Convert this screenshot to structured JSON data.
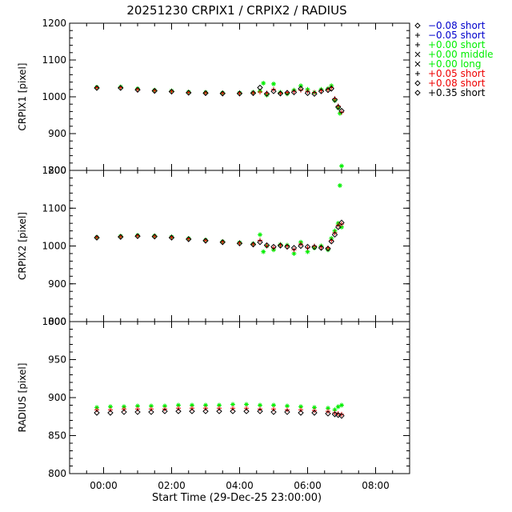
{
  "chart_data": {
    "type": "scatter",
    "title": "20251230 CRPIX1 / CRPIX2 / RADIUS",
    "xlabel": "Start Time (29-Dec-25 23:00:00)",
    "x_ticks": [
      "00:00",
      "02:00",
      "04:00",
      "06:00",
      "08:00"
    ],
    "x_tick_hours": [
      0,
      2,
      4,
      6,
      8
    ],
    "x_range_hours": [
      -1,
      9
    ],
    "legend_placement": "right",
    "legend": [
      {
        "symbol": "diamond",
        "sign": "−",
        "offset": "0.08",
        "length": "short",
        "color": "#0000cc"
      },
      {
        "symbol": "plus",
        "sign": "−",
        "offset": "0.05",
        "length": "short",
        "color": "#0000cc"
      },
      {
        "symbol": "plus",
        "sign": "+",
        "offset": "0.00",
        "length": "short",
        "color": "#00ee00"
      },
      {
        "symbol": "cross",
        "sign": "+",
        "offset": "0.00",
        "length": "middle",
        "color": "#00ee00"
      },
      {
        "symbol": "cross",
        "sign": "+",
        "offset": "0.00",
        "length": "long",
        "color": "#00ee00"
      },
      {
        "symbol": "plus",
        "sign": "+",
        "offset": "0.05",
        "length": "short",
        "color": "#ee0000"
      },
      {
        "symbol": "diamond",
        "sign": "+",
        "offset": "0.08",
        "length": "short",
        "color": "#ee0000"
      },
      {
        "symbol": "diamond",
        "sign": "+",
        "offset": "0.35",
        "length": "short",
        "color": "#000000"
      }
    ],
    "panels": [
      {
        "id": "crpix1",
        "ylabel": "CRPIX1 [pixel]",
        "ylim": [
          800,
          1200
        ],
        "y_ticks": [
          800,
          900,
          1000,
          1100,
          1200
        ],
        "series": [
          {
            "color": "#00ee00",
            "symbol": "asterisk",
            "x": [
              -0.2,
              0.5,
              1.0,
              1.5,
              2.0,
              2.5,
              3.0,
              3.5,
              4.0,
              4.4,
              4.6,
              4.7,
              4.8,
              5.0,
              5.2,
              5.4,
              5.6,
              5.8,
              6.0,
              6.2,
              6.4,
              6.6,
              6.7,
              6.8,
              6.9,
              6.95,
              7.0
            ],
            "y": [
              1026,
              1027,
              1022,
              1018,
              1016,
              1013,
              1012,
              1011,
              1011,
              1012,
              1015,
              1037,
              1005,
              1035,
              1012,
              1008,
              1018,
              1030,
              1020,
              1012,
              1020,
              1022,
              1030,
              990,
              970,
              955,
              812
            ]
          },
          {
            "color": "#ee0000",
            "symbol": "plus",
            "x": [
              -0.2,
              0.5,
              1.0,
              1.5,
              2.0,
              2.5,
              3.0,
              3.5,
              4.0,
              4.4,
              4.6,
              4.8,
              5.0,
              5.2,
              5.4,
              5.6,
              5.8,
              6.0,
              6.2,
              6.4,
              6.6,
              6.7,
              6.8,
              6.9,
              7.0
            ],
            "y": [
              1025,
              1025,
              1020,
              1017,
              1015,
              1012,
              1011,
              1010,
              1010,
              1011,
              1013,
              1010,
              1020,
              1010,
              1012,
              1015,
              1018,
              1015,
              1012,
              1017,
              1020,
              1025,
              995,
              975,
              958
            ]
          },
          {
            "color": "#000000",
            "symbol": "diamond",
            "x": [
              -0.2,
              0.5,
              1.0,
              1.5,
              2.0,
              2.5,
              3.0,
              3.5,
              4.0,
              4.4,
              4.6,
              4.8,
              5.0,
              5.2,
              5.4,
              5.6,
              5.8,
              6.0,
              6.2,
              6.4,
              6.6,
              6.7,
              6.8,
              6.9,
              7.0
            ],
            "y": [
              1024,
              1024,
              1019,
              1016,
              1014,
              1011,
              1010,
              1009,
              1009,
              1010,
              1025,
              1008,
              1015,
              1009,
              1011,
              1012,
              1022,
              1010,
              1008,
              1015,
              1018,
              1022,
              992,
              972,
              962
            ]
          }
        ]
      },
      {
        "id": "crpix2",
        "ylabel": "CRPIX2 [pixel]",
        "ylim": [
          800,
          1200
        ],
        "y_ticks": [
          800,
          900,
          1000,
          1100,
          1200
        ],
        "series": [
          {
            "color": "#00ee00",
            "symbol": "asterisk",
            "x": [
              -0.2,
              0.5,
              1.0,
              1.5,
              2.0,
              2.5,
              3.0,
              3.5,
              4.0,
              4.4,
              4.6,
              4.7,
              4.8,
              5.0,
              5.2,
              5.4,
              5.6,
              5.8,
              6.0,
              6.2,
              6.4,
              6.6,
              6.7,
              6.8,
              6.9,
              6.95,
              7.0
            ],
            "y": [
              1023,
              1026,
              1028,
              1027,
              1024,
              1020,
              1016,
              1012,
              1009,
              1006,
              1030,
              985,
              1000,
              990,
              1004,
              1002,
              980,
              1010,
              985,
              995,
              1000,
              990,
              1020,
              1040,
              1060,
              1160,
              1050
            ]
          },
          {
            "color": "#ee0000",
            "symbol": "plus",
            "x": [
              -0.2,
              0.5,
              1.0,
              1.5,
              2.0,
              2.5,
              3.0,
              3.5,
              4.0,
              4.4,
              4.6,
              4.8,
              5.0,
              5.2,
              5.4,
              5.6,
              5.8,
              6.0,
              6.2,
              6.4,
              6.6,
              6.7,
              6.8,
              6.9,
              7.0
            ],
            "y": [
              1023,
              1025,
              1027,
              1026,
              1023,
              1019,
              1015,
              1011,
              1008,
              1005,
              1015,
              1000,
              995,
              1003,
              1000,
              990,
              1005,
              995,
              1000,
              997,
              995,
              1015,
              1035,
              1055,
              1058
            ]
          },
          {
            "color": "#000000",
            "symbol": "diamond",
            "x": [
              -0.2,
              0.5,
              1.0,
              1.5,
              2.0,
              2.5,
              3.0,
              3.5,
              4.0,
              4.4,
              4.6,
              4.8,
              5.0,
              5.2,
              5.4,
              5.6,
              5.8,
              6.0,
              6.2,
              6.4,
              6.6,
              6.7,
              6.8,
              6.9,
              7.0
            ],
            "y": [
              1022,
              1024,
              1026,
              1025,
              1022,
              1018,
              1014,
              1010,
              1007,
              1004,
              1010,
              1002,
              998,
              1001,
              998,
              995,
              1000,
              998,
              997,
              995,
              993,
              1012,
              1030,
              1050,
              1062
            ]
          }
        ]
      },
      {
        "id": "radius",
        "ylabel": "RADIUS [pixel]",
        "ylim": [
          800,
          1000
        ],
        "y_ticks": [
          800,
          850,
          900,
          950,
          1000
        ],
        "series": [
          {
            "color": "#00ee00",
            "symbol": "asterisk",
            "x": [
              -0.2,
              0.2,
              0.6,
              1.0,
              1.4,
              1.8,
              2.2,
              2.6,
              3.0,
              3.4,
              3.8,
              4.2,
              4.6,
              5.0,
              5.4,
              5.8,
              6.2,
              6.6,
              6.8,
              6.9,
              7.0
            ],
            "y": [
              887,
              888,
              888,
              889,
              889,
              889,
              890,
              890,
              890,
              890,
              891,
              891,
              890,
              890,
              889,
              888,
              887,
              886,
              884,
              888,
              890
            ]
          },
          {
            "color": "#ee0000",
            "symbol": "plus",
            "x": [
              -0.2,
              0.2,
              0.6,
              1.0,
              1.4,
              1.8,
              2.2,
              2.6,
              3.0,
              3.4,
              3.8,
              4.2,
              4.6,
              5.0,
              5.4,
              5.8,
              6.2,
              6.6,
              6.8,
              6.9,
              7.0
            ],
            "y": [
              884,
              884,
              885,
              885,
              885,
              885,
              886,
              886,
              886,
              886,
              886,
              886,
              885,
              885,
              884,
              884,
              883,
              882,
              880,
              879,
              878
            ]
          },
          {
            "color": "#000000",
            "symbol": "diamond",
            "x": [
              -0.2,
              0.2,
              0.6,
              1.0,
              1.4,
              1.8,
              2.2,
              2.6,
              3.0,
              3.4,
              3.8,
              4.2,
              4.6,
              5.0,
              5.4,
              5.8,
              6.2,
              6.6,
              6.8,
              6.9,
              7.0
            ],
            "y": [
              880,
              880,
              881,
              881,
              881,
              882,
              882,
              882,
              882,
              882,
              882,
              882,
              882,
              881,
              881,
              880,
              880,
              879,
              878,
              877,
              876
            ]
          }
        ]
      }
    ]
  }
}
